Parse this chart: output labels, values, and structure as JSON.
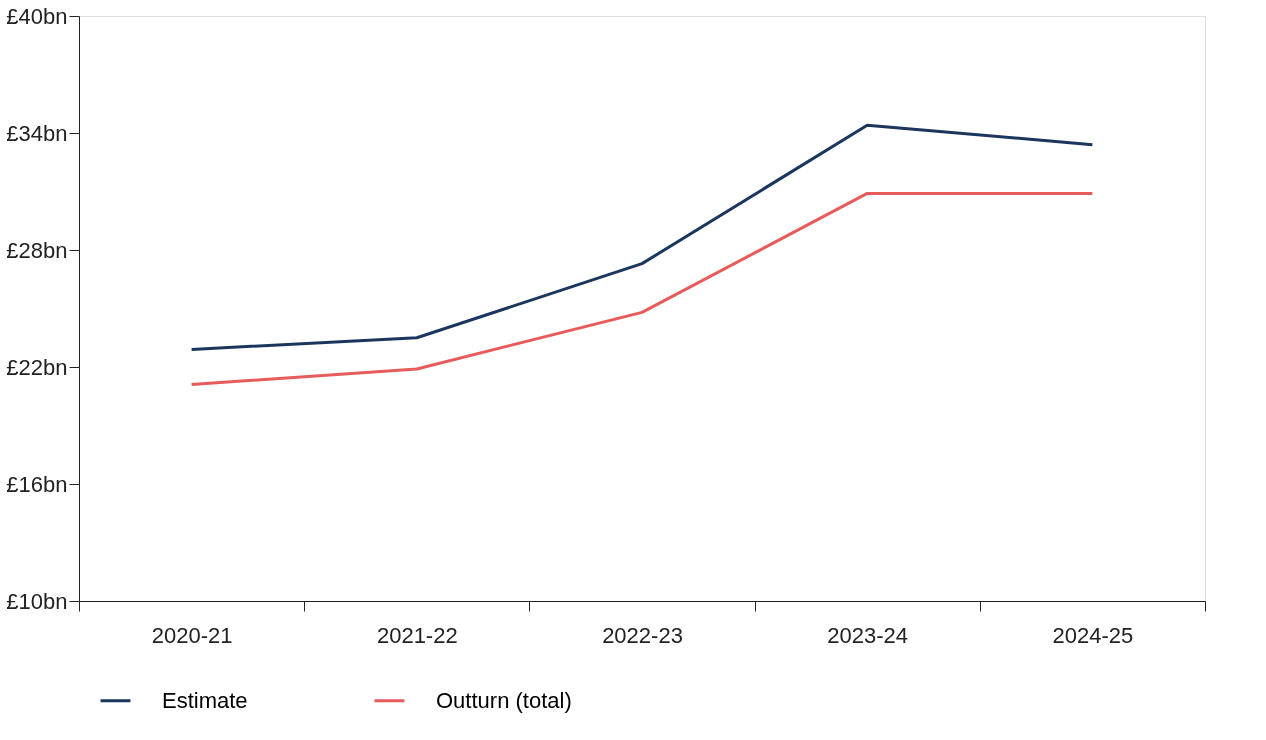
{
  "chart_data": {
    "type": "line",
    "categories": [
      "2020-21",
      "2021-22",
      "2022-23",
      "2023-24",
      "2024-25"
    ],
    "series": [
      {
        "name": "Estimate",
        "color": "#1b365d",
        "values": [
          22.9,
          23.5,
          27.3,
          34.4,
          33.4
        ]
      },
      {
        "name": "Outturn (total)",
        "color": "#e85b5b",
        "values": [
          21.1,
          21.9,
          24.8,
          30.9,
          30.9
        ]
      }
    ],
    "ylim": [
      10,
      40
    ],
    "yticks": [
      {
        "value": 10,
        "label": "£10bn"
      },
      {
        "value": 16,
        "label": "£16bn"
      },
      {
        "value": 22,
        "label": "£22bn"
      },
      {
        "value": 28,
        "label": "£28bn"
      },
      {
        "value": 34,
        "label": "£34bn"
      },
      {
        "value": 40,
        "label": "£40bn"
      }
    ],
    "grid": false,
    "legend": "bottom",
    "marker": "none",
    "line_style": "solid"
  }
}
